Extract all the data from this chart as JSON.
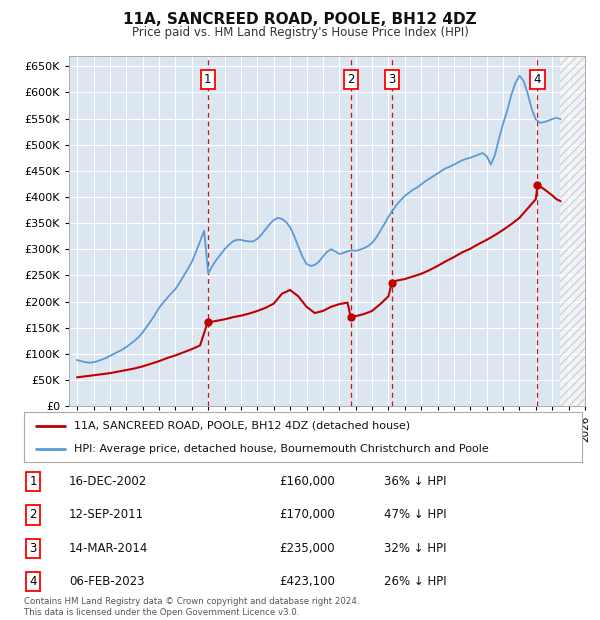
{
  "title": "11A, SANCREED ROAD, POOLE, BH12 4DZ",
  "subtitle": "Price paid vs. HM Land Registry's House Price Index (HPI)",
  "background_color": "#ffffff",
  "plot_bg_color": "#dce6f1",
  "grid_color": "#ffffff",
  "hpi_color": "#5b9bd5",
  "price_color": "#c00000",
  "transactions": [
    {
      "num": 1,
      "date_str": "16-DEC-2002",
      "date_x": 2002.96,
      "price": 160000,
      "pct": "36% ↓ HPI"
    },
    {
      "num": 2,
      "date_str": "12-SEP-2011",
      "date_x": 2011.7,
      "price": 170000,
      "pct": "47% ↓ HPI"
    },
    {
      "num": 3,
      "date_str": "14-MAR-2014",
      "date_x": 2014.2,
      "price": 235000,
      "pct": "32% ↓ HPI"
    },
    {
      "num": 4,
      "date_str": "06-FEB-2023",
      "date_x": 2023.1,
      "price": 423100,
      "pct": "26% ↓ HPI"
    }
  ],
  "hpi_data_x": [
    1995.0,
    1995.25,
    1995.5,
    1995.75,
    1996.0,
    1996.25,
    1996.5,
    1996.75,
    1997.0,
    1997.25,
    1997.5,
    1997.75,
    1998.0,
    1998.25,
    1998.5,
    1998.75,
    1999.0,
    1999.25,
    1999.5,
    1999.75,
    2000.0,
    2000.25,
    2000.5,
    2000.75,
    2001.0,
    2001.25,
    2001.5,
    2001.75,
    2002.0,
    2002.25,
    2002.5,
    2002.75,
    2003.0,
    2003.25,
    2003.5,
    2003.75,
    2004.0,
    2004.25,
    2004.5,
    2004.75,
    2005.0,
    2005.25,
    2005.5,
    2005.75,
    2006.0,
    2006.25,
    2006.5,
    2006.75,
    2007.0,
    2007.25,
    2007.5,
    2007.75,
    2008.0,
    2008.25,
    2008.5,
    2008.75,
    2009.0,
    2009.25,
    2009.5,
    2009.75,
    2010.0,
    2010.25,
    2010.5,
    2010.75,
    2011.0,
    2011.25,
    2011.5,
    2011.75,
    2012.0,
    2012.25,
    2012.5,
    2012.75,
    2013.0,
    2013.25,
    2013.5,
    2013.75,
    2014.0,
    2014.25,
    2014.5,
    2014.75,
    2015.0,
    2015.25,
    2015.5,
    2015.75,
    2016.0,
    2016.25,
    2016.5,
    2016.75,
    2017.0,
    2017.25,
    2017.5,
    2017.75,
    2018.0,
    2018.25,
    2018.5,
    2018.75,
    2019.0,
    2019.25,
    2019.5,
    2019.75,
    2020.0,
    2020.25,
    2020.5,
    2020.75,
    2021.0,
    2021.25,
    2021.5,
    2021.75,
    2022.0,
    2022.25,
    2022.5,
    2022.75,
    2023.0,
    2023.25,
    2023.5,
    2023.75,
    2024.0,
    2024.25,
    2024.5
  ],
  "hpi_data_y": [
    88000,
    86000,
    84000,
    83000,
    84000,
    86000,
    89000,
    92000,
    96000,
    100000,
    104000,
    108000,
    113000,
    119000,
    125000,
    132000,
    141000,
    152000,
    163000,
    175000,
    188000,
    198000,
    207000,
    216000,
    224000,
    236000,
    249000,
    262000,
    276000,
    295000,
    315000,
    335000,
    254000,
    268000,
    280000,
    290000,
    300000,
    308000,
    315000,
    318000,
    318000,
    316000,
    315000,
    315000,
    320000,
    328000,
    338000,
    348000,
    356000,
    360000,
    358000,
    352000,
    342000,
    325000,
    305000,
    286000,
    272000,
    268000,
    270000,
    276000,
    286000,
    295000,
    300000,
    296000,
    291000,
    293000,
    296000,
    298000,
    297000,
    299000,
    302000,
    306000,
    312000,
    322000,
    335000,
    348000,
    362000,
    374000,
    385000,
    394000,
    402000,
    408000,
    414000,
    418000,
    424000,
    430000,
    435000,
    440000,
    445000,
    450000,
    455000,
    458000,
    462000,
    466000,
    470000,
    473000,
    475000,
    478000,
    481000,
    484000,
    478000,
    462000,
    480000,
    512000,
    540000,
    565000,
    595000,
    618000,
    632000,
    622000,
    598000,
    568000,
    548000,
    542000,
    543000,
    546000,
    549000,
    551000,
    549000
  ],
  "price_data_x": [
    1995.0,
    1995.5,
    1996.0,
    1996.5,
    1997.0,
    1997.5,
    1998.0,
    1998.5,
    1999.0,
    1999.5,
    2000.0,
    2000.5,
    2001.0,
    2001.5,
    2002.0,
    2002.5,
    2002.96,
    2003.5,
    2004.0,
    2004.5,
    2005.0,
    2005.5,
    2006.0,
    2006.5,
    2007.0,
    2007.5,
    2008.0,
    2008.5,
    2009.0,
    2009.5,
    2010.0,
    2010.5,
    2011.0,
    2011.5,
    2011.7,
    2012.0,
    2012.5,
    2013.0,
    2013.5,
    2014.0,
    2014.2,
    2014.5,
    2015.0,
    2015.5,
    2016.0,
    2016.5,
    2017.0,
    2017.5,
    2018.0,
    2018.5,
    2019.0,
    2019.5,
    2020.0,
    2020.5,
    2021.0,
    2021.5,
    2022.0,
    2022.5,
    2023.0,
    2023.1,
    2023.5,
    2024.0,
    2024.25,
    2024.5
  ],
  "price_data_y": [
    55000,
    57000,
    59000,
    61000,
    63000,
    66000,
    69000,
    72000,
    76000,
    81000,
    86000,
    92000,
    97000,
    103000,
    109000,
    116000,
    160000,
    163000,
    166000,
    170000,
    173000,
    177000,
    182000,
    188000,
    196000,
    215000,
    222000,
    210000,
    190000,
    178000,
    182000,
    190000,
    195000,
    198000,
    170000,
    172000,
    176000,
    182000,
    195000,
    210000,
    235000,
    240000,
    243000,
    248000,
    253000,
    260000,
    268000,
    277000,
    285000,
    294000,
    301000,
    310000,
    318000,
    327000,
    337000,
    348000,
    360000,
    378000,
    396000,
    423100,
    415000,
    403000,
    396000,
    392000
  ],
  "xlim": [
    1994.5,
    2025.8
  ],
  "ylim": [
    0,
    670000
  ],
  "yticks": [
    0,
    50000,
    100000,
    150000,
    200000,
    250000,
    300000,
    350000,
    400000,
    450000,
    500000,
    550000,
    600000,
    650000
  ],
  "xticks": [
    1995,
    1996,
    1997,
    1998,
    1999,
    2000,
    2001,
    2002,
    2003,
    2004,
    2005,
    2006,
    2007,
    2008,
    2009,
    2010,
    2011,
    2012,
    2013,
    2014,
    2015,
    2016,
    2017,
    2018,
    2019,
    2020,
    2021,
    2022,
    2023,
    2024,
    2025,
    2026
  ],
  "hatch_start": 2024.5,
  "footer": "Contains HM Land Registry data © Crown copyright and database right 2024.\nThis data is licensed under the Open Government Licence v3.0.",
  "legend1": "11A, SANCREED ROAD, POOLE, BH12 4DZ (detached house)",
  "legend2": "HPI: Average price, detached house, Bournemouth Christchurch and Poole"
}
